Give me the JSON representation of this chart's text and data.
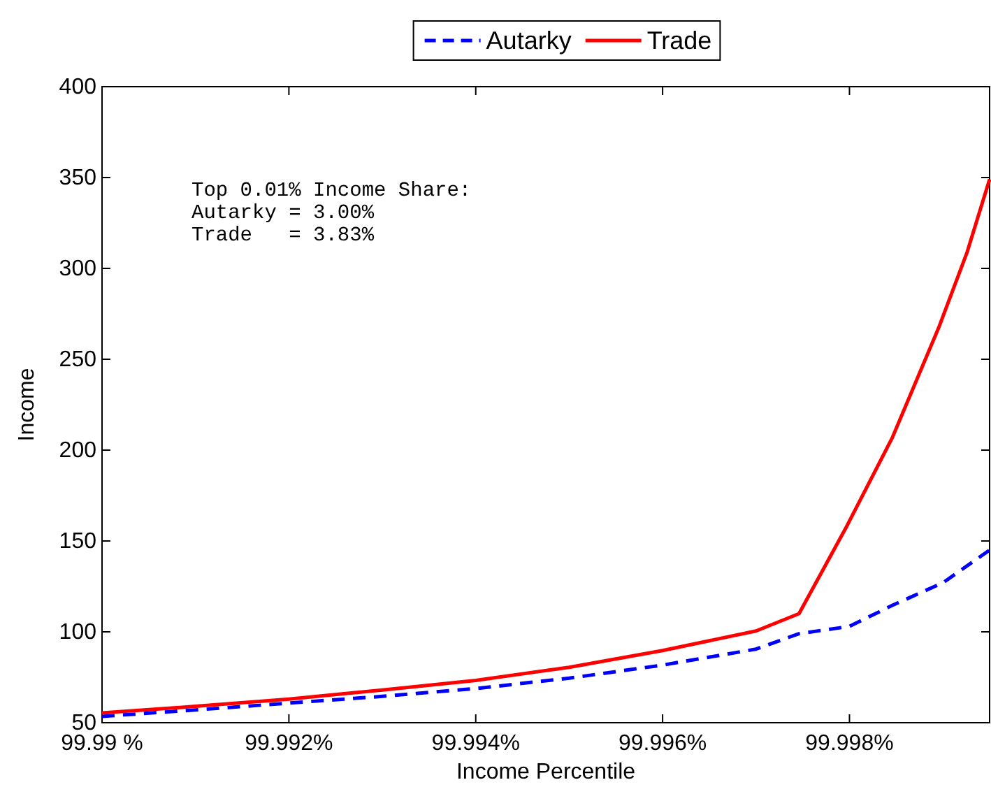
{
  "chart_data": {
    "type": "line",
    "xlabel": "Income Percentile",
    "ylabel": "Income",
    "x": [
      99.99,
      99.991,
      99.992,
      99.993,
      99.994,
      99.995,
      99.996,
      99.997,
      99.99746,
      99.998,
      99.99846,
      99.999,
      99.9995
    ],
    "series": [
      {
        "name": "Autarky",
        "color": "#0000ff",
        "line_style": "dashed",
        "values": [
          53.5,
          57,
          60.8,
          64.5,
          68.8,
          74.5,
          81.7,
          90.5,
          99,
          103,
          114.6,
          127,
          145
        ]
      },
      {
        "name": "Trade",
        "color": "#ff0000",
        "line_style": "solid",
        "x": [
          99.99,
          99.991,
          99.992,
          99.993,
          99.994,
          99.995,
          99.996,
          99.997,
          99.99746,
          99.99797,
          99.99846,
          99.99896,
          99.99926,
          99.9995
        ],
        "values": [
          55.4,
          59,
          63,
          68,
          73.3,
          80.5,
          89.7,
          100.5,
          110,
          158,
          207,
          268,
          309,
          349
        ]
      }
    ],
    "xlim": [
      99.99,
      99.9995
    ],
    "xticks": [
      {
        "value": 99.99,
        "label": "99.99 %"
      },
      {
        "value": 99.992,
        "label": "99.992%"
      },
      {
        "value": 99.994,
        "label": "99.994%"
      },
      {
        "value": 99.996,
        "label": "99.996%"
      },
      {
        "value": 99.998,
        "label": "99.998%"
      }
    ],
    "ylim": [
      50,
      400
    ],
    "yticks": [
      50,
      100,
      150,
      200,
      250,
      300,
      350,
      400
    ],
    "grid": false,
    "legend": "top",
    "marker": "none",
    "annotations": [
      "Top 0.01% Income Share:\nAutarky = 3.00%\nTrade   = 3.83%"
    ]
  }
}
